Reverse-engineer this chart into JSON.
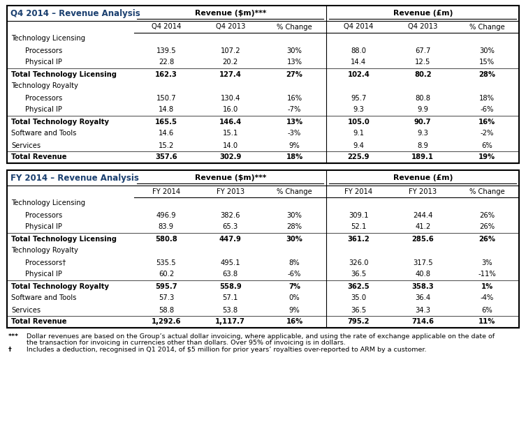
{
  "q4_title": "Q4 2014 – Revenue Analysis",
  "fy_title": "FY 2014 – Revenue Analysis",
  "revenue_dollar_header": "Revenue ($m)***",
  "revenue_pound_header": "Revenue (£m)",
  "q4_col_headers": [
    "Q4 2014",
    "Q4 2013",
    "% Change",
    "Q4 2014",
    "Q4 2013",
    "% Change"
  ],
  "fy_col_headers": [
    "FY 2014",
    "FY 2013",
    "% Change",
    "FY 2014",
    "FY 2013",
    "% Change"
  ],
  "q4_rows": [
    {
      "label": "Technology Licensing",
      "indent": false,
      "bold": false,
      "data": [
        "",
        "",
        "",
        "",
        "",
        ""
      ],
      "section_header": true
    },
    {
      "label": "Processors",
      "indent": true,
      "bold": false,
      "data": [
        "139.5",
        "107.2",
        "30%",
        "88.0",
        "67.7",
        "30%"
      ]
    },
    {
      "label": "Physical IP",
      "indent": true,
      "bold": false,
      "data": [
        "22.8",
        "20.2",
        "13%",
        "14.4",
        "12.5",
        "15%"
      ]
    },
    {
      "label": "Total Technology Licensing",
      "indent": false,
      "bold": true,
      "data": [
        "162.3",
        "127.4",
        "27%",
        "102.4",
        "80.2",
        "28%"
      ]
    },
    {
      "label": "Technology Royalty",
      "indent": false,
      "bold": false,
      "data": [
        "",
        "",
        "",
        "",
        "",
        ""
      ],
      "section_header": true
    },
    {
      "label": "Processors",
      "indent": true,
      "bold": false,
      "data": [
        "150.7",
        "130.4",
        "16%",
        "95.7",
        "80.8",
        "18%"
      ]
    },
    {
      "label": "Physical IP",
      "indent": true,
      "bold": false,
      "data": [
        "14.8",
        "16.0",
        "-7%",
        "9.3",
        "9.9",
        "-6%"
      ]
    },
    {
      "label": "Total Technology Royalty",
      "indent": false,
      "bold": true,
      "data": [
        "165.5",
        "146.4",
        "13%",
        "105.0",
        "90.7",
        "16%"
      ]
    },
    {
      "label": "Software and Tools",
      "indent": false,
      "bold": false,
      "data": [
        "14.6",
        "15.1",
        "-3%",
        "9.1",
        "9.3",
        "-2%"
      ]
    },
    {
      "label": "Services",
      "indent": false,
      "bold": false,
      "data": [
        "15.2",
        "14.0",
        "9%",
        "9.4",
        "8.9",
        "6%"
      ]
    },
    {
      "label": "Total Revenue",
      "indent": false,
      "bold": true,
      "data": [
        "357.6",
        "302.9",
        "18%",
        "225.9",
        "189.1",
        "19%"
      ],
      "bottom_border": true
    }
  ],
  "fy_rows": [
    {
      "label": "Technology Licensing",
      "indent": false,
      "bold": false,
      "data": [
        "",
        "",
        "",
        "",
        "",
        ""
      ],
      "section_header": true
    },
    {
      "label": "Processors",
      "indent": true,
      "bold": false,
      "data": [
        "496.9",
        "382.6",
        "30%",
        "309.1",
        "244.4",
        "26%"
      ]
    },
    {
      "label": "Physical IP",
      "indent": true,
      "bold": false,
      "data": [
        "83.9",
        "65.3",
        "28%",
        "52.1",
        "41.2",
        "26%"
      ]
    },
    {
      "label": "Total Technology Licensing",
      "indent": false,
      "bold": true,
      "data": [
        "580.8",
        "447.9",
        "30%",
        "361.2",
        "285.6",
        "26%"
      ]
    },
    {
      "label": "Technology Royalty",
      "indent": false,
      "bold": false,
      "data": [
        "",
        "",
        "",
        "",
        "",
        ""
      ],
      "section_header": true
    },
    {
      "label": "Processors†",
      "indent": true,
      "bold": false,
      "data": [
        "535.5",
        "495.1",
        "8%",
        "326.0",
        "317.5",
        "3%"
      ]
    },
    {
      "label": "Physical IP",
      "indent": true,
      "bold": false,
      "data": [
        "60.2",
        "63.8",
        "-6%",
        "36.5",
        "40.8",
        "-11%"
      ]
    },
    {
      "label": "Total Technology Royalty",
      "indent": false,
      "bold": true,
      "data": [
        "595.7",
        "558.9",
        "7%",
        "362.5",
        "358.3",
        "1%"
      ]
    },
    {
      "label": "Software and Tools",
      "indent": false,
      "bold": false,
      "data": [
        "57.3",
        "57.1",
        "0%",
        "35.0",
        "36.4",
        "-4%"
      ]
    },
    {
      "label": "Services",
      "indent": false,
      "bold": false,
      "data": [
        "58.8",
        "53.8",
        "9%",
        "36.5",
        "34.3",
        "6%"
      ]
    },
    {
      "label": "Total Revenue",
      "indent": false,
      "bold": true,
      "data": [
        "1,292.6",
        "1,117.7",
        "16%",
        "795.2",
        "714.6",
        "11%"
      ],
      "bottom_border": true
    }
  ],
  "footnote_stars": "***",
  "footnote_stars_text": "Dollar revenues are based on the Group’s actual dollar invoicing, where applicable, and using the rate of exchange applicable on the date of\nthe transaction for invoicing in currencies other than dollars. Over 95% of invoicing is in dollars.",
  "footnote_dagger": "†",
  "footnote_dagger_text": "Includes a deduction, recognised in Q1 2014, of $5 million for prior years’ royalties over-reported to ARM by a customer.",
  "title_color": "#1a3f6f",
  "font_size": 7.2,
  "header_font_size": 7.8,
  "title_font_size": 8.5,
  "footnote_font_size": 6.8
}
